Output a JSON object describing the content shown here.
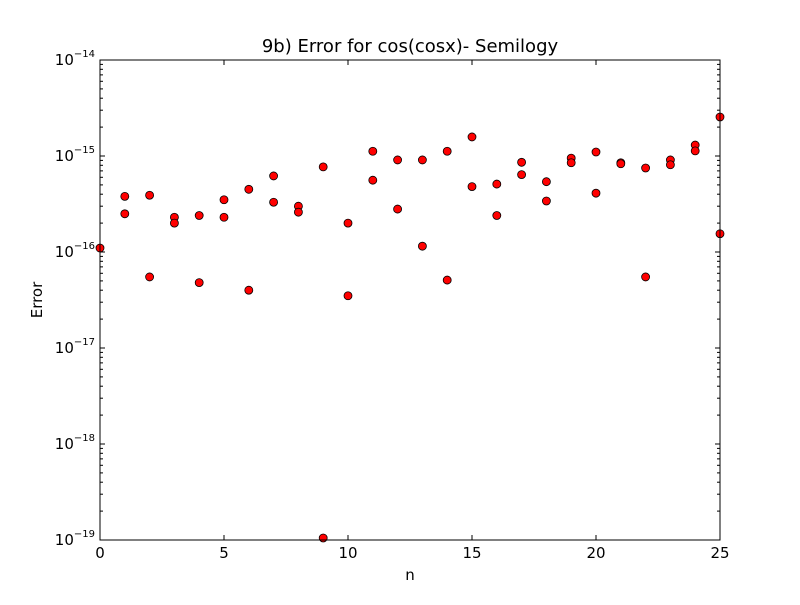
{
  "chart_data": {
    "type": "scatter",
    "title": "9b) Error for cos(cosx)- Semilogy",
    "xlabel": "n",
    "ylabel": "Error",
    "xlim": [
      0,
      25
    ],
    "ylim": [
      1e-19,
      1e-14
    ],
    "yscale": "log",
    "grid": false,
    "legend": "none",
    "x_ticks": [
      {
        "value": 0,
        "label": "0"
      },
      {
        "value": 5,
        "label": "5"
      },
      {
        "value": 10,
        "label": "10"
      },
      {
        "value": 15,
        "label": "15"
      },
      {
        "value": 20,
        "label": "20"
      },
      {
        "value": 25,
        "label": "25"
      }
    ],
    "y_ticks": [
      {
        "value": 1e-19,
        "base": "10",
        "exponent": "−19"
      },
      {
        "value": 1e-18,
        "base": "10",
        "exponent": "−18"
      },
      {
        "value": 1e-17,
        "base": "10",
        "exponent": "−17"
      },
      {
        "value": 1e-16,
        "base": "10",
        "exponent": "−16"
      },
      {
        "value": 1e-15,
        "base": "10",
        "exponent": "−15"
      },
      {
        "value": 1e-14,
        "base": "10",
        "exponent": "−14"
      }
    ],
    "marker_color": "#ff0000",
    "marker_edge_color": "#000000",
    "points": [
      {
        "x": 0,
        "y": 1.1e-16
      },
      {
        "x": 1,
        "y": 3.8e-16
      },
      {
        "x": 1,
        "y": 2.5e-16
      },
      {
        "x": 2,
        "y": 3.9e-16
      },
      {
        "x": 2,
        "y": 5.5e-17
      },
      {
        "x": 3,
        "y": 2.3e-16
      },
      {
        "x": 3,
        "y": 2e-16
      },
      {
        "x": 4,
        "y": 2.4e-16
      },
      {
        "x": 4,
        "y": 4.8e-17
      },
      {
        "x": 5,
        "y": 3.5e-16
      },
      {
        "x": 5,
        "y": 2.3e-16
      },
      {
        "x": 6,
        "y": 4.5e-16
      },
      {
        "x": 6,
        "y": 4e-17
      },
      {
        "x": 7,
        "y": 6.2e-16
      },
      {
        "x": 7,
        "y": 3.3e-16
      },
      {
        "x": 8,
        "y": 3e-16
      },
      {
        "x": 8,
        "y": 2.6e-16
      },
      {
        "x": 9,
        "y": 7.7e-16
      },
      {
        "x": 9,
        "y": 1.05e-19
      },
      {
        "x": 10,
        "y": 2e-16
      },
      {
        "x": 10,
        "y": 3.5e-17
      },
      {
        "x": 11,
        "y": 1.12e-15
      },
      {
        "x": 11,
        "y": 5.6e-16
      },
      {
        "x": 12,
        "y": 9.1e-16
      },
      {
        "x": 12,
        "y": 2.8e-16
      },
      {
        "x": 13,
        "y": 9.1e-16
      },
      {
        "x": 13,
        "y": 1.15e-16
      },
      {
        "x": 14,
        "y": 1.12e-15
      },
      {
        "x": 14,
        "y": 5.1e-17
      },
      {
        "x": 15,
        "y": 1.58e-15
      },
      {
        "x": 15,
        "y": 4.8e-16
      },
      {
        "x": 16,
        "y": 5.1e-16
      },
      {
        "x": 16,
        "y": 2.4e-16
      },
      {
        "x": 17,
        "y": 8.6e-16
      },
      {
        "x": 17,
        "y": 6.4e-16
      },
      {
        "x": 18,
        "y": 5.4e-16
      },
      {
        "x": 18,
        "y": 3.4e-16
      },
      {
        "x": 19,
        "y": 9.5e-16
      },
      {
        "x": 19,
        "y": 8.5e-16
      },
      {
        "x": 20,
        "y": 1.1e-15
      },
      {
        "x": 20,
        "y": 4.1e-16
      },
      {
        "x": 21,
        "y": 8.5e-16
      },
      {
        "x": 21,
        "y": 8.3e-16
      },
      {
        "x": 22,
        "y": 7.5e-16
      },
      {
        "x": 22,
        "y": 5.5e-17
      },
      {
        "x": 23,
        "y": 9.1e-16
      },
      {
        "x": 23,
        "y": 8.1e-16
      },
      {
        "x": 24,
        "y": 1.3e-15
      },
      {
        "x": 24,
        "y": 1.13e-15
      },
      {
        "x": 25,
        "y": 2.55e-15
      },
      {
        "x": 25,
        "y": 1.55e-16
      }
    ]
  }
}
